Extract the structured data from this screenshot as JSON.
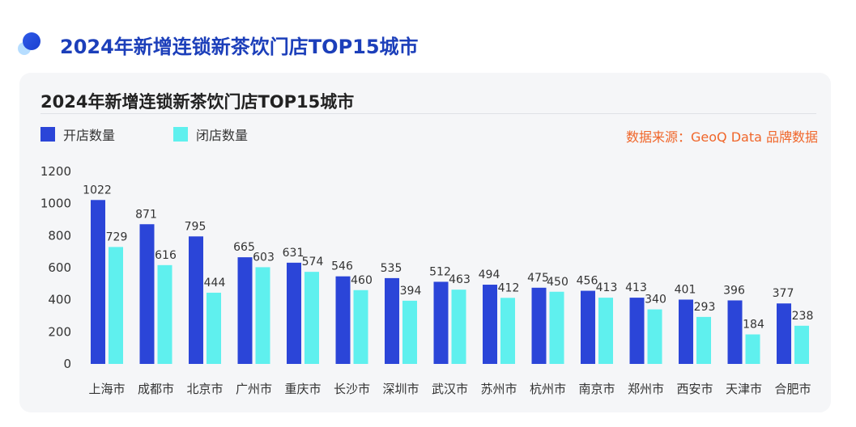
{
  "page": {
    "title": "2024年新增连锁新茶饮门店TOP15城市"
  },
  "card": {
    "title": "2024年新增连锁新茶饮门店TOP15城市",
    "source": "数据来源：GeoQ Data 品牌数据"
  },
  "colors": {
    "accent": "#1c3fba",
    "series_open": "#2b45d8",
    "series_close": "#5ff0ee",
    "source": "#f0662a"
  },
  "chart_data": {
    "type": "bar",
    "title": "2024年新增连锁新茶饮门店TOP15城市",
    "categories": [
      "上海市",
      "成都市",
      "北京市",
      "广州市",
      "重庆市",
      "长沙市",
      "深圳市",
      "武汉市",
      "苏州市",
      "杭州市",
      "南京市",
      "郑州市",
      "西安市",
      "天津市",
      "合肥市"
    ],
    "series": [
      {
        "name": "开店数量",
        "color": "#2b45d8",
        "values": [
          1022,
          871,
          795,
          665,
          631,
          546,
          535,
          512,
          494,
          475,
          456,
          413,
          401,
          396,
          377
        ]
      },
      {
        "name": "闭店数量",
        "color": "#5ff0ee",
        "values": [
          729,
          616,
          444,
          603,
          574,
          460,
          394,
          463,
          412,
          450,
          413,
          340,
          293,
          184,
          238
        ]
      }
    ],
    "y_ticks": [
      "0",
      "200",
      "400",
      "600",
      "800",
      "1000",
      "1200"
    ],
    "ylim": [
      0,
      1200
    ],
    "grid": false,
    "legend_position": "top-left"
  }
}
